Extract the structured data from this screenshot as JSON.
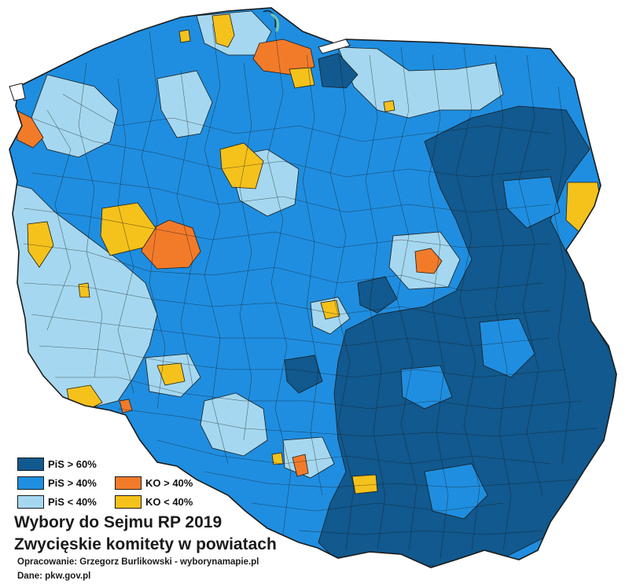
{
  "title": "Wybory do Sejmu RP 2019",
  "subtitle": "Zwycięskie komitety w powiatach",
  "credit": "Opracowanie: Grzegorz Burlikowski - wyborynamapie.pl",
  "source": "Dane: pkw.gov.pl",
  "colors": {
    "pis_60": "#11598e",
    "pis_40": "#1f8ee0",
    "pis_lt40": "#a5d8f0",
    "ko_40": "#f27b2a",
    "ko_lt40": "#f5c21b",
    "border": "#1b1b1b",
    "sea": "#ffffff",
    "lagoon": "#79c7a8"
  },
  "legend": [
    {
      "label": "PiS > 60%",
      "color_key": "pis_60"
    },
    {
      "label": "PiS > 40%",
      "color_key": "pis_40"
    },
    {
      "label": "KO > 40%",
      "color_key": "ko_40"
    },
    {
      "label": "PiS < 40%",
      "color_key": "pis_lt40"
    },
    {
      "label": "KO < 40%",
      "color_key": "ko_lt40"
    }
  ]
}
